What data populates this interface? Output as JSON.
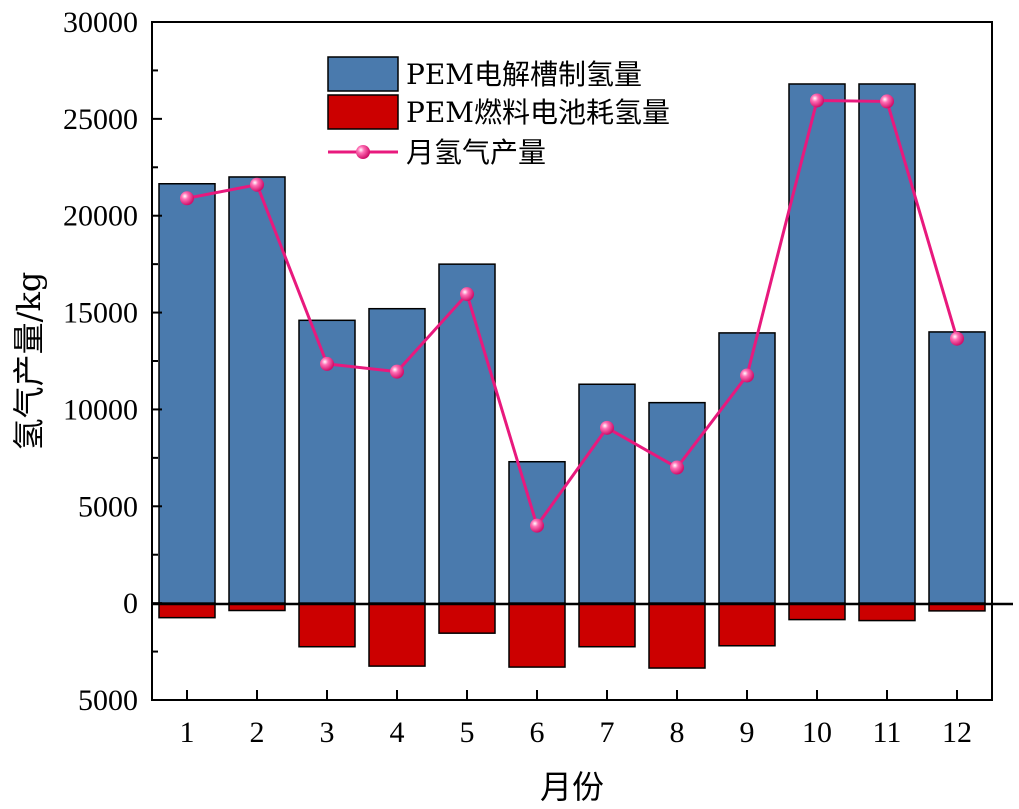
{
  "chart_data": {
    "type": "bar",
    "xlabel": "月份",
    "ylabel": "氢气产量/kg",
    "ylim": [
      -5000,
      30000
    ],
    "yticks": [
      30000,
      25000,
      20000,
      15000,
      10000,
      5000,
      0,
      -5000
    ],
    "ytick_labels": [
      "30000",
      "25000",
      "20000",
      "15000",
      "10000",
      "5000",
      "0",
      "5000"
    ],
    "categories": [
      "1",
      "2",
      "3",
      "4",
      "5",
      "6",
      "7",
      "8",
      "9",
      "10",
      "11",
      "12"
    ],
    "legend_position": "top-center",
    "grid": false,
    "series": [
      {
        "name": "PEM电解槽制氢量",
        "kind": "bar",
        "color": "#4a7aad",
        "values": [
          21650,
          22000,
          14600,
          15200,
          17500,
          7300,
          11300,
          10350,
          13950,
          26800,
          26800,
          14000
        ]
      },
      {
        "name": "PEM燃料电池耗氢量",
        "kind": "bar",
        "color": "#cc0000",
        "values": [
          -750,
          -380,
          -2250,
          -3250,
          -1550,
          -3300,
          -2250,
          -3350,
          -2200,
          -850,
          -900,
          -400
        ]
      },
      {
        "name": "月氢气产量",
        "kind": "line",
        "color": "#e8197d",
        "values": [
          20900,
          21600,
          12350,
          11950,
          15950,
          4000,
          9050,
          7000,
          11750,
          25950,
          25900,
          13650
        ]
      }
    ]
  }
}
